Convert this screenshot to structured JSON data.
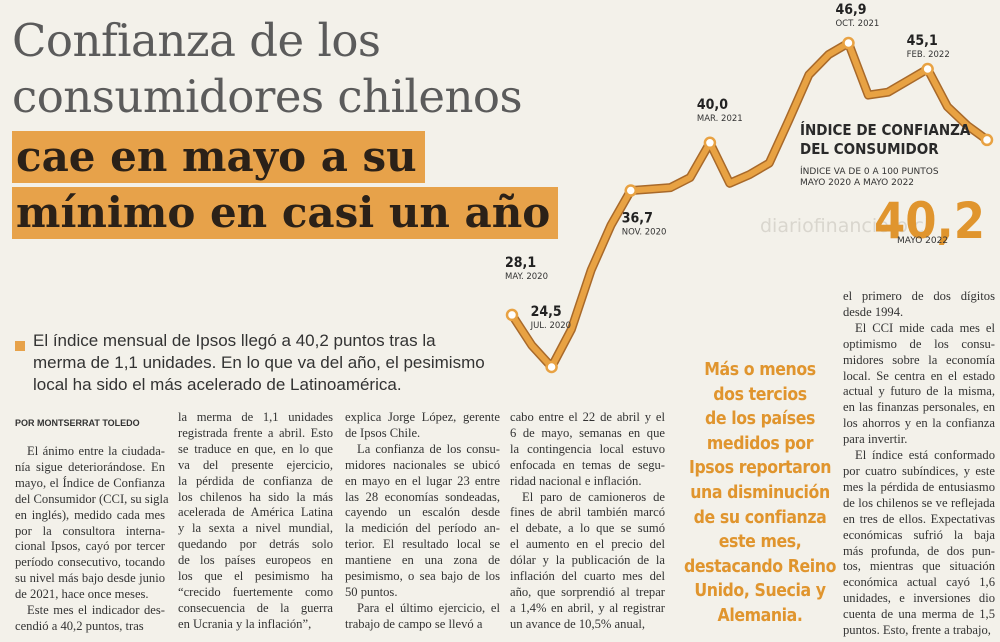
{
  "headline": {
    "light": [
      "Confianza de los",
      "consumidores chilenos"
    ],
    "bold": [
      "cae en mayo a su",
      "mínimo en casi un año"
    ]
  },
  "lead": [
    "El índice mensual de Ipsos llegó a 40,2 puntos tras la",
    "merma de 1,1 unidades. En lo que va del año, el pesimismo",
    "local ha sido el más acelerado de Latinoamérica."
  ],
  "byline": "POR MONTSERRAT TOLEDO",
  "columns": [
    [
      [
        "El ánimo entre la ciudada-",
        "nía sigue deteriorándose. En",
        "mayo, el Índice de Confianza",
        "del Consumidor (CCI, su sigla",
        "en inglés), medido cada mes",
        "por la consultora interna-",
        "cional Ipsos, cayó por tercer",
        "período consecutivo, tocando",
        "su nivel más bajo desde junio",
        "de 2021, hace once meses."
      ],
      [
        "Este mes el indicador des-",
        "cendió a 40,2 puntos, tras"
      ]
    ],
    [
      [
        "la merma de 1,1 unidades",
        "registrada frente a abril. Esto",
        "se traduce en que, en lo que",
        "va del presente ejercicio,",
        "la pérdida de confianza de",
        "los chilenos ha sido la más",
        "acelerada de América Latina",
        "y la sexta a nivel mundial,",
        "quedando por detrás solo",
        "de los países europeos en",
        "los que el pesimismo ha",
        "“crecido fuertemente como",
        "consecuencia de la guerra",
        "en Ucrania y la inflación”,"
      ]
    ],
    [
      [
        "explica Jorge López, gerente",
        "de Ipsos Chile."
      ],
      [
        "La confianza de los consu-",
        "midores nacionales se ubicó",
        "en mayo en el lugar 23 entre",
        "las 28 economías sondeadas,",
        "cayendo un escalón desde",
        "la medición del período an-",
        "terior. El resultado local se",
        "mantiene en una zona de",
        "pesimismo, o sea bajo de los",
        "50 puntos."
      ],
      [
        "Para el último ejercicio, el",
        "trabajo de campo se llevó a"
      ]
    ],
    [
      [
        "cabo entre el 22 de abril y el",
        "6 de mayo, semanas en que",
        "la contingencia local estuvo",
        "enfocada en temas de segu-",
        "ridad nacional e inflación."
      ],
      [
        "El paro de camioneros de",
        "fines de abril también marcó",
        "el debate, a lo que se sumó",
        "el aumento en el precio del",
        "dólar y la publicación de la",
        "inflación del cuarto mes del",
        "año, que sorprendió al trepar",
        "a 1,4% en abril, y al registrar",
        "un avance de 10,5% anual,"
      ]
    ],
    [
      [
        "el primero de dos dígitos",
        "desde 1994."
      ],
      [
        "El CCI mide cada mes el",
        "optimismo de los consu-",
        "midores sobre la economía",
        "local. Se centra en el estado",
        "actual y futuro de la misma,",
        "en las finanzas personales, en",
        "los ahorros y en la confianza",
        "para invertir."
      ],
      [
        "El índice está conformado",
        "por cuatro subíndices, y este",
        "mes la pérdida de entusiasmo",
        "de los chilenos se ve reflejada",
        "en tres de ellos. Expectativas",
        "económicas sufrió la baja",
        "más profunda, de dos pun-",
        "tos, mientras que situación",
        "económica actual cayó 1,6",
        "unidades, e inversiones dio",
        "cuenta de una merma de 1,5",
        "puntos. Esto, frente a trabajo,"
      ]
    ]
  ],
  "pull_quote": [
    "Más o menos",
    "dos tercios",
    "de los países",
    "medidos por",
    "Ipsos reportaron",
    "una disminución",
    "de su confianza",
    "este mes,",
    "destacando Reino",
    "Unido, Suecia y",
    "Alemania."
  ],
  "watermark": "diariofinanciero.cl",
  "chart_data": {
    "type": "line",
    "title": [
      "ÍNDICE DE CONFIANZA",
      "DEL CONSUMIDOR"
    ],
    "subtitle": [
      "ÍNDICE VA DE 0 A 100 PUNTOS",
      "MAYO 2020 A MAYO 2022"
    ],
    "color": "#e8a243",
    "categories": [
      "MAY. 2020",
      null,
      "JUL. 2020",
      null,
      null,
      null,
      "NOV. 2020",
      null,
      null,
      null,
      "MAR. 2021",
      null,
      null,
      null,
      null,
      null,
      null,
      "OCT. 2021",
      null,
      null,
      null,
      "FEB. 2022",
      null,
      null,
      "MAYO 2022"
    ],
    "values": [
      28.1,
      26.0,
      24.5,
      27.1,
      31.2,
      34.3,
      36.7,
      36.8,
      36.9,
      37.6,
      40.0,
      37.2,
      37.8,
      38.6,
      41.6,
      44.7,
      46.1,
      46.9,
      43.3,
      43.5,
      44.3,
      45.1,
      42.5,
      41.2,
      40.2
    ],
    "value_labels": [
      "28,1",
      null,
      "24,5",
      null,
      null,
      null,
      "36,7",
      null,
      null,
      null,
      "40,0",
      null,
      null,
      null,
      null,
      null,
      null,
      "46,9",
      null,
      null,
      null,
      "45,1",
      null,
      null,
      "40,2"
    ]
  }
}
